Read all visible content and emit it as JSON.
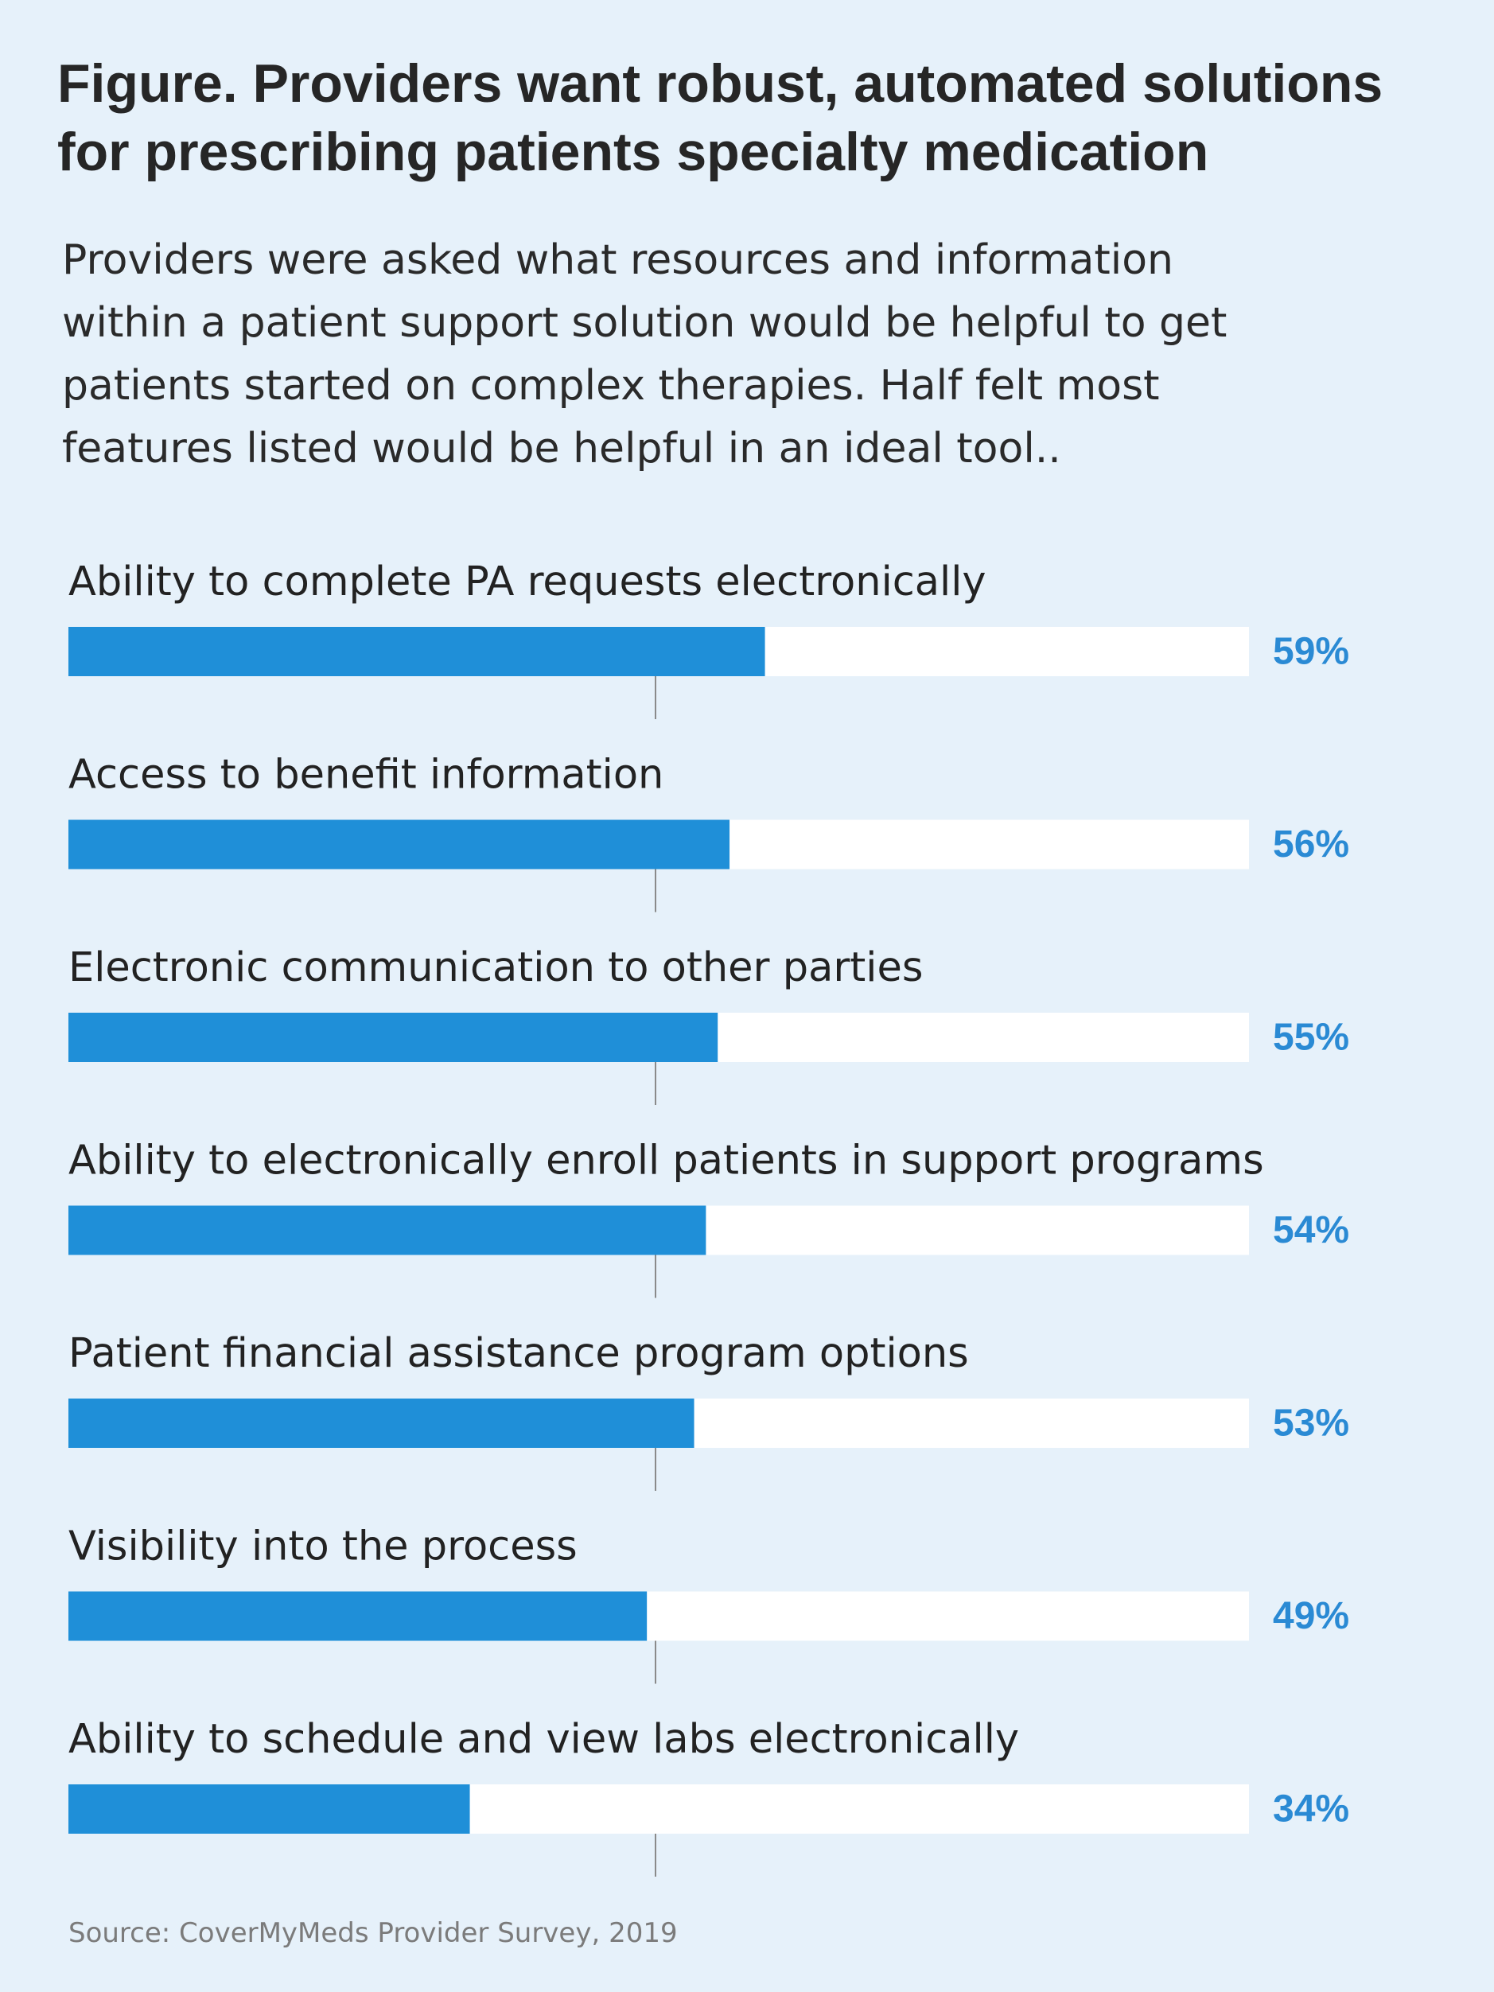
{
  "header": {
    "title": "Figure. Providers want robust, automated solutions for prescribing patients specialty medication",
    "subtitle": "Providers were asked what resources and information within a patient support solution would be helpful to get patients started on complex therapies. Half felt most features listed would be helpful in an ideal tool.."
  },
  "footer": {
    "source": "Source: CoverMyMeds Provider Survey, 2019"
  },
  "colors": {
    "background": "#e6f1fa",
    "bar_fill": "#1f8fd8",
    "bar_track": "#ffffff",
    "value_text": "#2a8ad4",
    "divider": "#8a8a8a"
  },
  "chart_data": {
    "type": "bar",
    "orientation": "horizontal",
    "title": "Figure. Providers want robust, automated solutions for prescribing patients specialty medication",
    "xlabel": "",
    "ylabel": "",
    "xlim": [
      0,
      100
    ],
    "unit": "%",
    "grid": false,
    "categories": [
      "Ability to complete PA requests electronically",
      "Access to benefit information",
      "Electronic communication to other parties",
      "Ability to electronically enroll patients in support programs",
      "Patient financial assistance program options",
      "Visibility into the process",
      "Ability to schedule and view labs electronically"
    ],
    "values": [
      59,
      56,
      55,
      54,
      53,
      49,
      34
    ],
    "value_labels": [
      "59%",
      "56%",
      "55%",
      "54%",
      "53%",
      "49%",
      "34%"
    ]
  }
}
